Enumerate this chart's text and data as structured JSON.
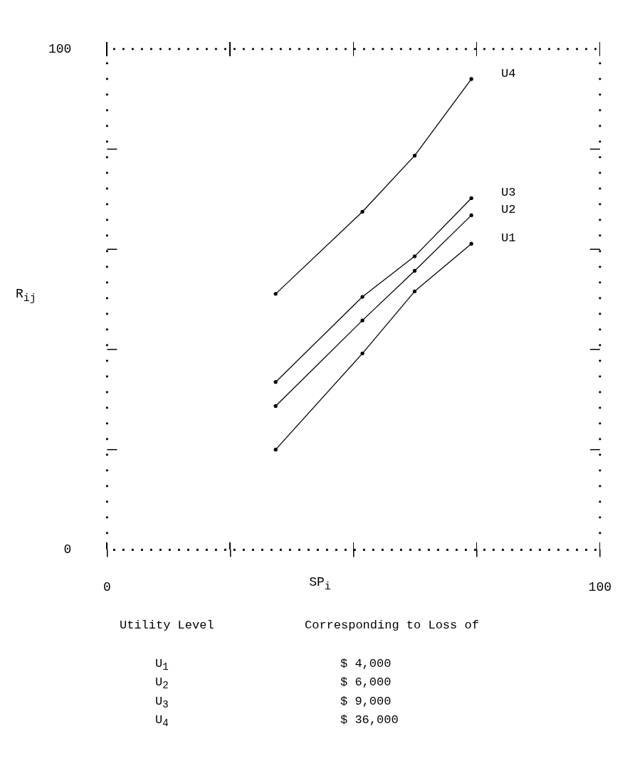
{
  "chart_data": {
    "type": "line",
    "xlabel": "SP$_{i}$",
    "ylabel": "R$_{ij}$",
    "x": [
      34.2,
      51.8,
      62.4,
      73.9
    ],
    "series": [
      {
        "name": "U4",
        "color": "#000000",
        "values": [
          51.1,
          67.5,
          78.7,
          94.0
        ]
      },
      {
        "name": "U3",
        "color": "#000000",
        "values": [
          33.5,
          50.5,
          58.6,
          70.2
        ]
      },
      {
        "name": "U2",
        "color": "#000000",
        "values": [
          28.7,
          45.8,
          55.7,
          66.8
        ]
      },
      {
        "name": "U1",
        "color": "#000000",
        "values": [
          20.0,
          39.2,
          51.6,
          61.1
        ]
      }
    ],
    "xlim": [
      0,
      100
    ],
    "xticks": [
      0,
      {
        "value": 25,
        "label": null
      },
      {
        "value": 50,
        "label": null
      },
      {
        "value": 75,
        "label": null
      },
      100
    ],
    "ylim": [
      0,
      100
    ],
    "yticks": [
      0,
      {
        "value": 20,
        "label": null
      },
      {
        "value": 40,
        "label": null
      },
      {
        "value": 60,
        "label": null
      },
      {
        "value": 80,
        "label": null
      },
      100
    ],
    "grid": false,
    "legend": false,
    "marker": "circle",
    "line_style": "solid",
    "annotations": [
      "Utility Level",
      "Corresponding to Loss of",
      "U$_{1}$",
      "$ 4,000",
      "U$_{2}$",
      "$ 6,000",
      "U$_{3}$",
      "$ 9,000",
      "U$_{4}$",
      "$ 36,000"
    ]
  }
}
